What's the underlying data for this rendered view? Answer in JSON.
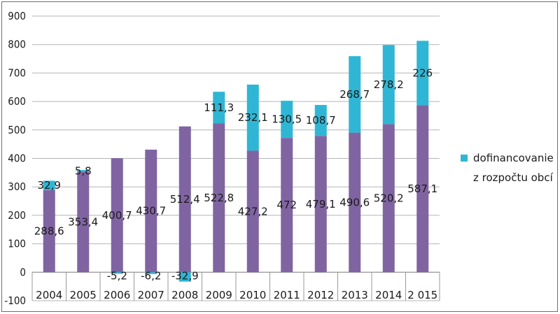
{
  "chart_data": {
    "type": "bar",
    "stacked": true,
    "categories": [
      "2004",
      "2005",
      "2006",
      "2007",
      "2008",
      "2009",
      "2010",
      "2011",
      "2012",
      "2013",
      "2014",
      "2 015"
    ],
    "series": [
      {
        "values": [
          288.6,
          353.4,
          400.7,
          430.7,
          512.4,
          522.8,
          427.2,
          472,
          479.1,
          490.6,
          520.2,
          587.1
        ],
        "labels": [
          "288,6",
          "353,4",
          "400,7",
          "430,7",
          "512,4",
          "522,8",
          "427,2",
          "472",
          "479,1",
          "490,6",
          "520,2",
          "587,1"
        ],
        "color": "#8064a2"
      },
      {
        "name": "dofinancovanie z rozpočtu obcí",
        "legend_lines": [
          "dofinancovanie",
          "z rozpočtu obcí"
        ],
        "values": [
          32.9,
          5.8,
          -5.2,
          -6.2,
          -32.9,
          111.3,
          232.1,
          130.5,
          108.7,
          268.7,
          278.2,
          226
        ],
        "labels": [
          "32,9",
          "5,8",
          "-5,2",
          "-6,2",
          "-32,9",
          "111,3",
          "232,1",
          "130,5",
          "108,7",
          "268,7",
          "278,2",
          "226"
        ],
        "color": "#2fb6d4"
      }
    ],
    "ylim": [
      -100,
      900
    ],
    "yticks": [
      -100,
      0,
      100,
      200,
      300,
      400,
      500,
      600,
      700,
      800,
      900
    ],
    "grid": true,
    "legend_position": "right"
  }
}
